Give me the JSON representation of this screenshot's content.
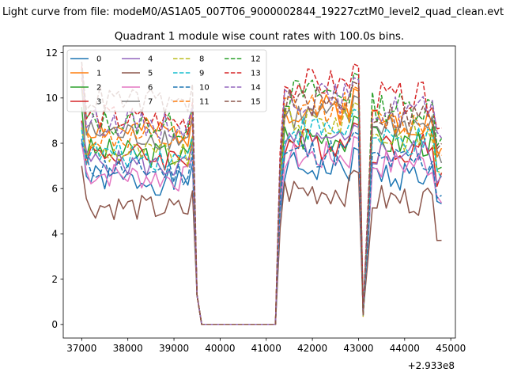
{
  "chart_data": {
    "type": "line",
    "suptitle": "Light curve from file: modeM0/AS1A05_007T06_9000002844_19227cztM0_level2_quad_clean.evt",
    "title": "Quadrant 1 module wise count rates with 100.0s bins.",
    "xlabel": "",
    "ylabel": "",
    "x_offset_label": "+2.933e8",
    "xlim": [
      36600,
      45100
    ],
    "ylim": [
      -0.6,
      12.3
    ],
    "xticks": [
      37000,
      38000,
      39000,
      40000,
      41000,
      42000,
      43000,
      44000,
      45000
    ],
    "xtick_labels": [
      "37000",
      "38000",
      "39000",
      "40000",
      "41000",
      "42000",
      "43000",
      "44000",
      "45000"
    ],
    "yticks": [
      0,
      2,
      4,
      6,
      8,
      10,
      12
    ],
    "ytick_labels": [
      "0",
      "2",
      "4",
      "6",
      "8",
      "10",
      "12"
    ],
    "grid": false,
    "legend_position": "upper left",
    "legend_columns": 4,
    "segments": [
      {
        "start": 37000,
        "end": 39400,
        "step": 100
      },
      {
        "start": 39400,
        "end": 39600,
        "step": 100
      },
      {
        "start": 39600,
        "end": 41200,
        "step": 100
      },
      {
        "start": 41200,
        "end": 43000,
        "step": 100
      },
      {
        "start": 43000,
        "end": 44800,
        "step": 100
      }
    ],
    "series": [
      {
        "name": "0",
        "color": "#1f77b4",
        "dashed": false,
        "first": 8.2,
        "level1": 6.5,
        "level2": 6.9,
        "level3": 6.6,
        "seed": 1
      },
      {
        "name": "1",
        "color": "#ff7f0e",
        "dashed": false,
        "first": 10.5,
        "level1": 8.7,
        "level2": 9.5,
        "level3": 9.0,
        "seed": 2
      },
      {
        "name": "2",
        "color": "#2ca02c",
        "dashed": false,
        "first": 9.6,
        "level1": 7.7,
        "level2": 8.3,
        "level3": 8.1,
        "seed": 3
      },
      {
        "name": "3",
        "color": "#d62728",
        "dashed": false,
        "first": 9.0,
        "level1": 7.6,
        "level2": 8.0,
        "level3": 7.8,
        "seed": 4
      },
      {
        "name": "4",
        "color": "#9467bd",
        "dashed": false,
        "first": 8.9,
        "level1": 7.2,
        "level2": 7.9,
        "level3": 7.6,
        "seed": 5
      },
      {
        "name": "5",
        "color": "#8c564b",
        "dashed": false,
        "first": 7.0,
        "level1": 5.3,
        "level2": 5.9,
        "level3": 5.5,
        "seed": 6
      },
      {
        "name": "6",
        "color": "#e377c2",
        "dashed": false,
        "first": 8.0,
        "level1": 6.7,
        "level2": 7.4,
        "level3": 7.1,
        "seed": 7
      },
      {
        "name": "7",
        "color": "#7f7f7f",
        "dashed": false,
        "first": 10.4,
        "level1": 8.5,
        "level2": 9.2,
        "level3": 8.8,
        "seed": 8
      },
      {
        "name": "8",
        "color": "#bcbd22",
        "dashed": true,
        "first": 8.7,
        "level1": 7.7,
        "level2": 8.9,
        "level3": 8.3,
        "seed": 9
      },
      {
        "name": "9",
        "color": "#17becf",
        "dashed": true,
        "first": 8.6,
        "level1": 7.6,
        "level2": 8.6,
        "level3": 8.0,
        "seed": 10
      },
      {
        "name": "10",
        "color": "#1f77b4",
        "dashed": true,
        "first": 8.0,
        "level1": 7.0,
        "level2": 7.6,
        "level3": 7.2,
        "seed": 11
      },
      {
        "name": "11",
        "color": "#ff7f0e",
        "dashed": true,
        "first": 10.9,
        "level1": 8.3,
        "level2": 9.6,
        "level3": 8.9,
        "seed": 12
      },
      {
        "name": "12",
        "color": "#2ca02c",
        "dashed": true,
        "first": 11.3,
        "level1": 9.0,
        "level2": 10.2,
        "level3": 9.6,
        "seed": 13
      },
      {
        "name": "13",
        "color": "#d62728",
        "dashed": true,
        "first": 11.4,
        "level1": 9.2,
        "level2": 10.6,
        "level3": 10.0,
        "seed": 14
      },
      {
        "name": "14",
        "color": "#9467bd",
        "dashed": true,
        "first": 11.2,
        "level1": 9.0,
        "level2": 10.0,
        "level3": 9.5,
        "seed": 15
      },
      {
        "name": "15",
        "color": "#8c564b",
        "dashed": true,
        "first": 11.6,
        "level1": 10.0,
        "level2": 9.8,
        "level3": 9.2,
        "seed": 16
      }
    ]
  }
}
